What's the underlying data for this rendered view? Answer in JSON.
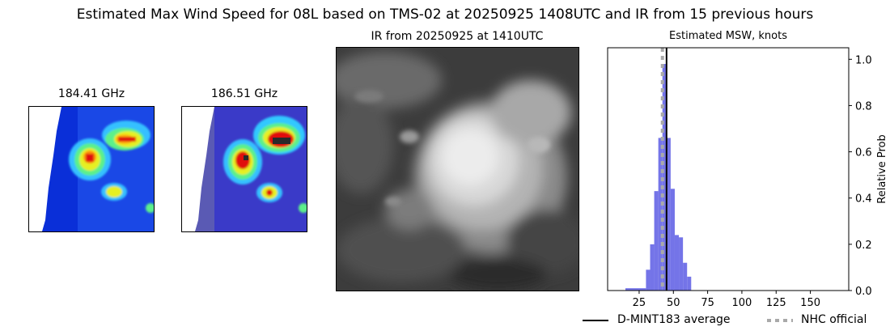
{
  "figure": {
    "suptitle": "Estimated Max Wind Speed for 08L based on TMS-02 at 20250925 1408UTC and IR from 15 previous hours"
  },
  "panels": {
    "mw1_title": "184.41 GHz",
    "mw2_title": "186.51 GHz",
    "ir_title": "IR from 20250925 at 1410UTC",
    "msw_title": "Estimated MSW, knots"
  },
  "colors": {
    "histogram": "#7474e8",
    "average_line": "#000000",
    "nhc_line": "#a9a9a9"
  },
  "chart_data": {
    "type": "bar",
    "title": "Estimated MSW, knots",
    "xlabel": "",
    "ylabel": "Relative Prob",
    "xlim": [
      2,
      178
    ],
    "ylim": [
      0,
      1.05
    ],
    "xticks": [
      25,
      50,
      75,
      100,
      125,
      150
    ],
    "yticks": [
      0.0,
      0.2,
      0.4,
      0.6,
      0.8,
      1.0
    ],
    "ytick_labels": [
      "0.0",
      "0.2",
      "0.4",
      "0.6",
      "0.8",
      "1.0"
    ],
    "y_axis_side": "right",
    "bin_width": 3,
    "bins": [
      {
        "x0": 15,
        "x1": 30,
        "value": 0.01
      },
      {
        "x0": 30,
        "x1": 33,
        "value": 0.09
      },
      {
        "x0": 33,
        "x1": 36,
        "value": 0.2
      },
      {
        "x0": 36,
        "x1": 39,
        "value": 0.43
      },
      {
        "x0": 39,
        "x1": 42,
        "value": 0.66
      },
      {
        "x0": 42,
        "x1": 45,
        "value": 0.98
      },
      {
        "x0": 45,
        "x1": 48,
        "value": 0.66
      },
      {
        "x0": 48,
        "x1": 51,
        "value": 0.44
      },
      {
        "x0": 51,
        "x1": 54,
        "value": 0.24
      },
      {
        "x0": 54,
        "x1": 57,
        "value": 0.23
      },
      {
        "x0": 57,
        "x1": 60,
        "value": 0.12
      },
      {
        "x0": 60,
        "x1": 63,
        "value": 0.06
      }
    ],
    "average": 45,
    "nhc_official": 42,
    "legend": [
      {
        "label": "D-MINT183 average",
        "style": "solid",
        "color": "#000000"
      },
      {
        "label": "NHC official",
        "style": "dotted",
        "color": "#a9a9a9"
      }
    ],
    "legend_placement": "bottom-right"
  }
}
